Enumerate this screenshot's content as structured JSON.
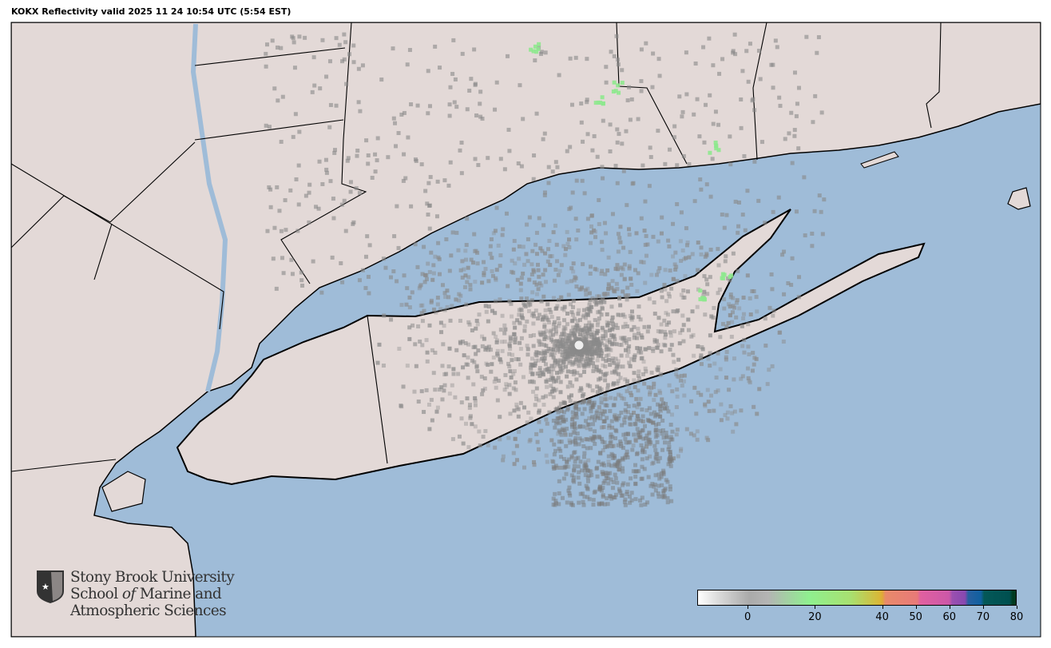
{
  "title": "KOKX Reflectivity valid 2025 11 24 10:54 UTC (5:54 EST)",
  "colors": {
    "land": "#e3d9d7",
    "water": "#9fbcd8",
    "border": "#000000",
    "radar_echo": "#8a8a8a"
  },
  "radar_site": "KOKX",
  "logo": {
    "line1": "Stony Brook University",
    "line2_a": "School ",
    "line2_b": "of",
    "line2_c": " Marine and",
    "line3": "Atmospheric Sciences",
    "icon": "shield-star-icon"
  },
  "colorbar": {
    "range": [
      -15,
      80
    ],
    "ticks": [
      "0",
      "20",
      "40",
      "50",
      "60",
      "70",
      "80"
    ],
    "tick_values": [
      0,
      20,
      40,
      50,
      60,
      70,
      80
    ]
  }
}
